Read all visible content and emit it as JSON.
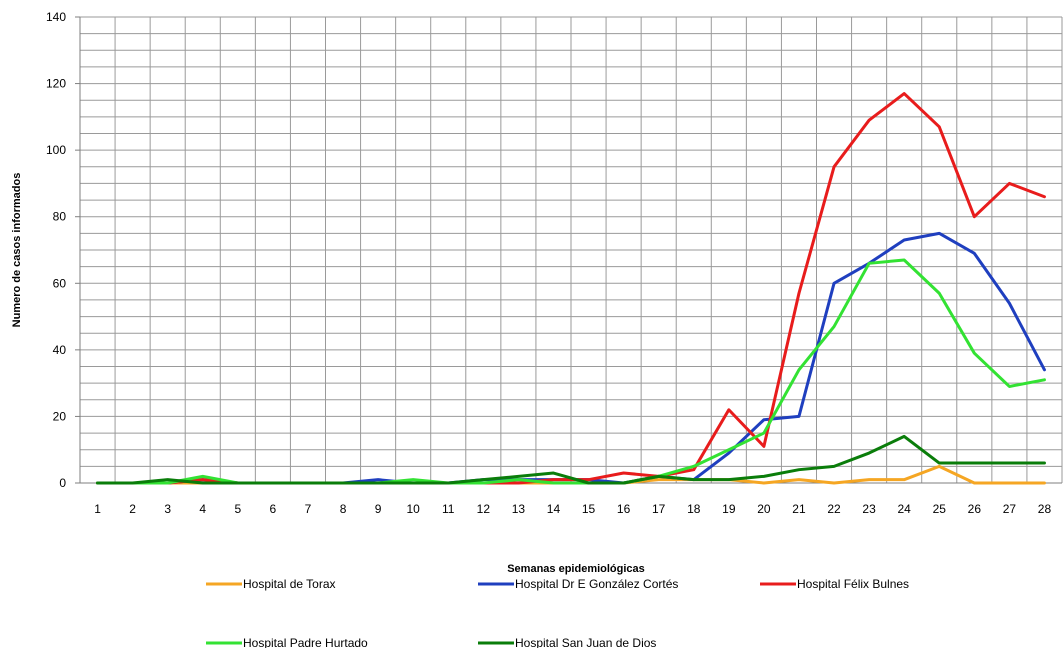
{
  "chart_data": {
    "type": "line",
    "title": "",
    "xlabel": "Semanas epidemiológicas",
    "ylabel": "Numero de casos informados",
    "x": [
      1,
      2,
      3,
      4,
      5,
      6,
      7,
      8,
      9,
      10,
      11,
      12,
      13,
      14,
      15,
      16,
      17,
      18,
      19,
      20,
      21,
      22,
      23,
      24,
      25,
      26,
      27,
      28
    ],
    "ylim": [
      0,
      140
    ],
    "yticks": [
      0,
      20,
      40,
      60,
      80,
      100,
      120,
      140
    ],
    "grid": true,
    "minor_grid_y": 5,
    "legend_position": "bottom",
    "series": [
      {
        "name": "Hospital de Torax",
        "color": "#f5a623",
        "values": [
          0,
          0,
          0,
          0,
          0,
          0,
          0,
          0,
          0,
          0,
          0,
          0,
          0,
          0,
          0,
          0,
          1,
          1,
          1,
          0,
          1,
          0,
          1,
          1,
          5,
          0,
          0,
          0
        ]
      },
      {
        "name": "Hospital Dr E González Cortés",
        "color": "#1f3fbf",
        "values": [
          0,
          0,
          0,
          1,
          0,
          0,
          0,
          0,
          1,
          0,
          0,
          1,
          1,
          1,
          1,
          0,
          2,
          1,
          9,
          19,
          20,
          60,
          66,
          73,
          75,
          69,
          54,
          34
        ]
      },
      {
        "name": "Hospital Félix Bulnes",
        "color": "#e81c1c",
        "values": [
          0,
          0,
          0,
          1,
          0,
          0,
          0,
          0,
          0,
          0,
          0,
          0,
          0,
          1,
          1,
          3,
          2,
          4,
          22,
          11,
          57,
          95,
          109,
          117,
          107,
          80,
          90,
          86
        ]
      },
      {
        "name": "Hospital Padre Hurtado",
        "color": "#33e233",
        "values": [
          0,
          0,
          0,
          2,
          0,
          0,
          0,
          0,
          0,
          1,
          0,
          0,
          1,
          0,
          0,
          0,
          2,
          5,
          10,
          15,
          34,
          47,
          66,
          67,
          57,
          39,
          29,
          31
        ]
      },
      {
        "name": "Hospital San Juan de Dios",
        "color": "#0a7d0a",
        "values": [
          0,
          0,
          1,
          0,
          0,
          0,
          0,
          0,
          0,
          0,
          0,
          1,
          2,
          3,
          0,
          0,
          2,
          1,
          1,
          2,
          4,
          5,
          9,
          14,
          6,
          6,
          6,
          6
        ]
      }
    ]
  }
}
